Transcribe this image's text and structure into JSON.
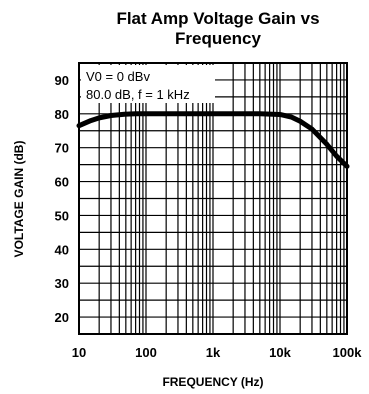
{
  "chart_data": {
    "type": "line",
    "title_line1": "Flat Amp Voltage Gain vs",
    "title_line2": "Frequency",
    "xlabel": "FREQUENCY (Hz)",
    "ylabel": "VOLTAGE GAIN (dB)",
    "x_scale": "log",
    "xlim": [
      10,
      100000
    ],
    "ylim": [
      15,
      95
    ],
    "x_ticks": [
      {
        "value": 10,
        "label": "10"
      },
      {
        "value": 100,
        "label": "100"
      },
      {
        "value": 1000,
        "label": "1k"
      },
      {
        "value": 10000,
        "label": "10k"
      },
      {
        "value": 100000,
        "label": "100k"
      }
    ],
    "y_ticks": [
      {
        "value": 20,
        "label": "20"
      },
      {
        "value": 30,
        "label": "30"
      },
      {
        "value": 40,
        "label": "40"
      },
      {
        "value": 50,
        "label": "50"
      },
      {
        "value": 60,
        "label": "60"
      },
      {
        "value": 70,
        "label": "70"
      },
      {
        "value": 80,
        "label": "80"
      },
      {
        "value": 90,
        "label": "90"
      }
    ],
    "grid": true,
    "annotation_line1": "V0 = 0 dBv",
    "annotation_line2": "80.0 dB, f = 1 kHz",
    "series": [
      {
        "x": [
          10,
          15,
          20,
          30,
          50,
          70,
          100,
          1000,
          5000,
          10000,
          15000,
          20000,
          30000,
          50000,
          70000,
          100000
        ],
        "y": [
          76.5,
          78.0,
          78.8,
          79.5,
          79.9,
          80.0,
          80.0,
          80.0,
          80.0,
          79.8,
          79.0,
          77.8,
          75.5,
          71.0,
          67.5,
          64.5
        ]
      }
    ]
  }
}
